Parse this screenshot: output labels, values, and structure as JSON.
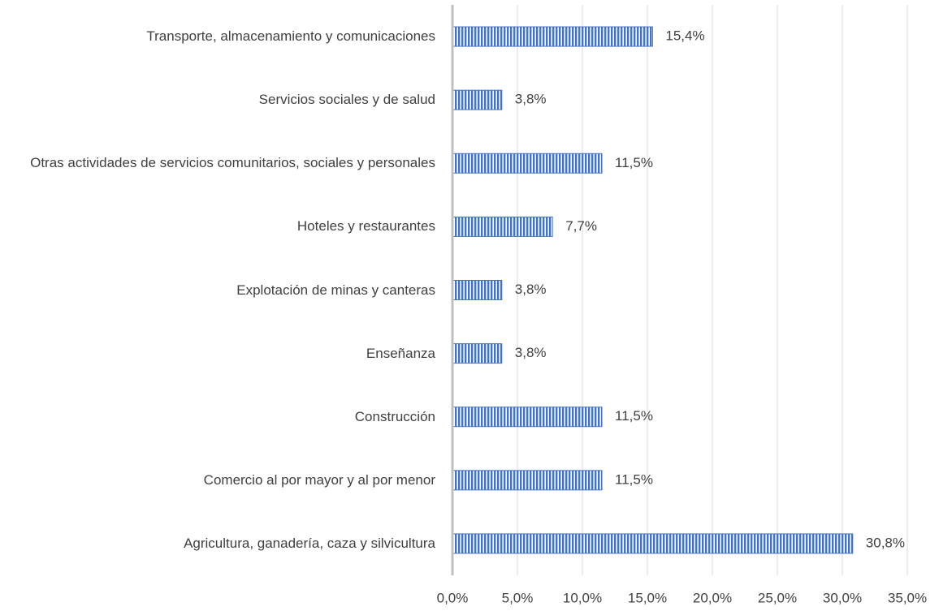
{
  "chart_data": {
    "type": "bar",
    "orientation": "horizontal",
    "categories": [
      "Transporte, almacenamiento y comunicaciones",
      "Servicios sociales y de salud",
      "Otras actividades de servicios comunitarios, sociales y personales",
      "Hoteles y restaurantes",
      "Explotación de minas y canteras",
      "Enseñanza",
      "Construcción",
      "Comercio al por mayor y al por menor",
      "Agricultura, ganadería, caza y silvicultura"
    ],
    "values": [
      15.4,
      3.8,
      11.5,
      7.7,
      3.8,
      3.8,
      11.5,
      11.5,
      30.8
    ],
    "value_labels": [
      "15,4%",
      "3,8%",
      "11,5%",
      "7,7%",
      "3,8%",
      "3,8%",
      "11,5%",
      "11,5%",
      "30,8%"
    ],
    "color": "#4472c4",
    "xlim": [
      0,
      35
    ],
    "xticks": [
      {
        "value": 0,
        "label": "0,0%"
      },
      {
        "value": 5,
        "label": "5,0%"
      },
      {
        "value": 10,
        "label": "10,0%"
      },
      {
        "value": 15,
        "label": "15,0%"
      },
      {
        "value": 20,
        "label": "20,0%"
      },
      {
        "value": 25,
        "label": "25,0%"
      },
      {
        "value": 30,
        "label": "30,0%"
      },
      {
        "value": 35,
        "label": "35,0%"
      }
    ],
    "grid": true
  }
}
